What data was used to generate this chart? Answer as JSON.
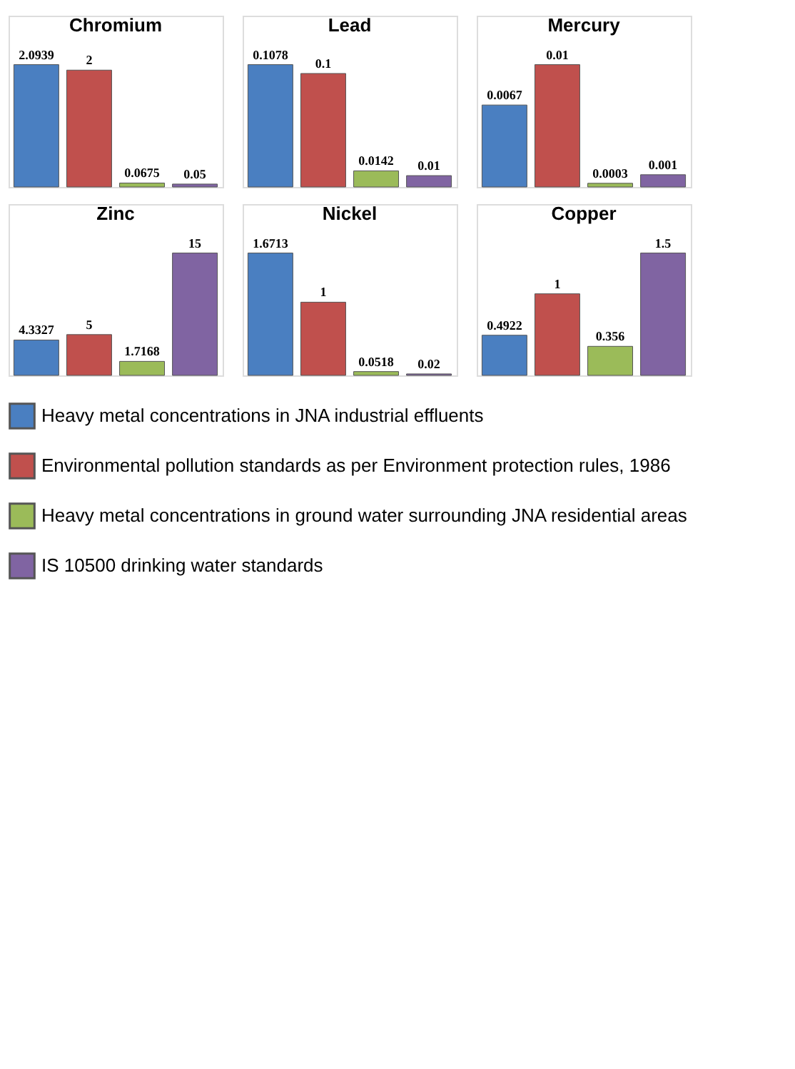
{
  "chart_data": [
    {
      "type": "bar",
      "title": "Chromium",
      "categories": [
        null
      ],
      "data_labels": true,
      "legend": "bottom",
      "series": [
        {
          "name": "Heavy metal concentrations in JNA industrial effluents",
          "color": "#4a7fc1",
          "values": [
            2.0939
          ]
        },
        {
          "name": "Environmental pollution standards as per Environment protection rules, 1986",
          "color": "#c0504d",
          "values": [
            2
          ]
        },
        {
          "name": "Heavy metal concentrations in ground water surrounding JNA residential areas",
          "color": "#9bbb59",
          "values": [
            0.0675
          ]
        },
        {
          "name": "IS 10500 drinking water standards",
          "color": "#8064a2",
          "values": [
            0.05
          ]
        }
      ]
    },
    {
      "type": "bar",
      "title": "Lead",
      "categories": [
        null
      ],
      "data_labels": true,
      "legend": "bottom",
      "series": [
        {
          "name": "Heavy metal concentrations in JNA industrial effluents",
          "color": "#4a7fc1",
          "values": [
            0.1078
          ]
        },
        {
          "name": "Environmental pollution standards as per Environment protection rules, 1986",
          "color": "#c0504d",
          "values": [
            0.1
          ]
        },
        {
          "name": "Heavy metal concentrations in ground water surrounding JNA residential areas",
          "color": "#9bbb59",
          "values": [
            0.0142
          ]
        },
        {
          "name": "IS 10500 drinking water standards",
          "color": "#8064a2",
          "values": [
            0.01
          ]
        }
      ]
    },
    {
      "type": "bar",
      "title": "Mercury",
      "categories": [
        null
      ],
      "data_labels": true,
      "legend": "bottom",
      "series": [
        {
          "name": "Heavy metal concentrations in JNA industrial effluents",
          "color": "#4a7fc1",
          "values": [
            0.0067
          ]
        },
        {
          "name": "Environmental pollution standards as per Environment protection rules, 1986",
          "color": "#c0504d",
          "values": [
            0.01
          ]
        },
        {
          "name": "Heavy metal concentrations in ground water surrounding JNA residential areas",
          "color": "#9bbb59",
          "values": [
            0.0003
          ]
        },
        {
          "name": "IS 10500 drinking water standards",
          "color": "#8064a2",
          "values": [
            0.001
          ]
        }
      ]
    },
    {
      "type": "bar",
      "title": "Zinc",
      "categories": [
        null
      ],
      "data_labels": true,
      "legend": "bottom",
      "series": [
        {
          "name": "Heavy metal concentrations in JNA industrial effluents",
          "color": "#4a7fc1",
          "values": [
            4.3327
          ]
        },
        {
          "name": "Environmental pollution standards as per Environment protection rules, 1986",
          "color": "#c0504d",
          "values": [
            5
          ]
        },
        {
          "name": "Heavy metal concentrations in ground water surrounding JNA residential areas",
          "color": "#9bbb59",
          "values": [
            1.7168
          ]
        },
        {
          "name": "IS 10500 drinking water standards",
          "color": "#8064a2",
          "values": [
            15
          ]
        }
      ]
    },
    {
      "type": "bar",
      "title": "Nickel",
      "categories": [
        null
      ],
      "data_labels": true,
      "legend": "bottom",
      "series": [
        {
          "name": "Heavy metal concentrations in JNA industrial effluents",
          "color": "#4a7fc1",
          "values": [
            1.6713
          ]
        },
        {
          "name": "Environmental pollution standards as per Environment protection rules, 1986",
          "color": "#c0504d",
          "values": [
            1
          ]
        },
        {
          "name": "Heavy metal concentrations in ground water surrounding JNA residential areas",
          "color": "#9bbb59",
          "values": [
            0.0518
          ]
        },
        {
          "name": "IS 10500 drinking water standards",
          "color": "#8064a2",
          "values": [
            0.02
          ]
        }
      ]
    },
    {
      "type": "bar",
      "title": "Copper",
      "categories": [
        null
      ],
      "data_labels": true,
      "legend": "bottom",
      "series": [
        {
          "name": "Heavy metal concentrations in JNA industrial effluents",
          "color": "#4a7fc1",
          "values": [
            0.4922
          ]
        },
        {
          "name": "Environmental pollution standards as per Environment protection rules, 1986",
          "color": "#c0504d",
          "values": [
            1
          ]
        },
        {
          "name": "Heavy metal concentrations in ground water surrounding JNA residential areas",
          "color": "#9bbb59",
          "values": [
            0.356
          ]
        },
        {
          "name": "IS 10500 drinking water standards",
          "color": "#8064a2",
          "values": [
            1.5
          ]
        }
      ]
    }
  ]
}
